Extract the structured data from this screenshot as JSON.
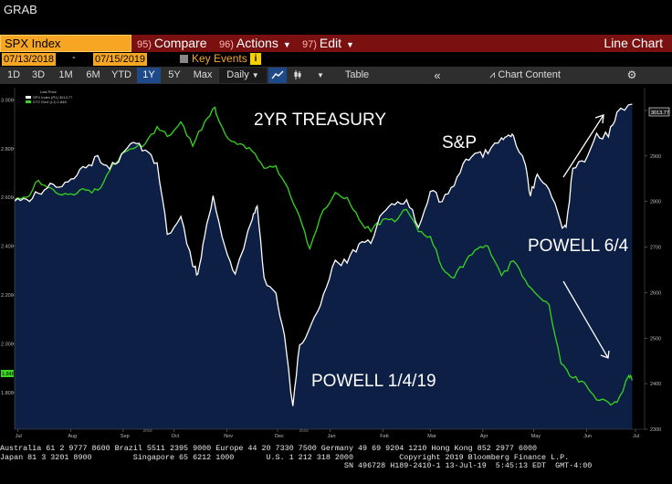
{
  "header": {
    "grab_label": "GRAB"
  },
  "menubar": {
    "security": "SPX Index",
    "compare": {
      "num": "95)",
      "label": "Compare"
    },
    "actions": {
      "num": "96)",
      "label": "Actions"
    },
    "edit": {
      "num": "97)",
      "label": "Edit"
    },
    "view_title": "Line Chart"
  },
  "dates": {
    "start": "07/13/2018",
    "separator": "-",
    "end": "07/15/2019",
    "key_events_label": "Key Events",
    "info_glyph": "i"
  },
  "toolbar": {
    "ranges": [
      "1D",
      "3D",
      "1M",
      "6M",
      "YTD",
      "1Y",
      "5Y",
      "Max"
    ],
    "active_range": "1Y",
    "frequency": "Daily",
    "table_label": "Table",
    "collapse_glyph": "«",
    "chart_content_label": "Chart Content",
    "gear_glyph": "⚙"
  },
  "legend": {
    "title": "Last Price",
    "spx": {
      "label": "SPX Index  (R1) 3013.77",
      "color": "#ffffff"
    },
    "gt2": {
      "label": "GT2 Govt  (L1)    1.848",
      "color": "#35d61e"
    }
  },
  "last_values": {
    "spx": "3013.77",
    "gt2": "1.848"
  },
  "annotations": {
    "treasury": "2YR TREASURY",
    "sp": "S&P",
    "powell_jun": "POWELL 6/4",
    "powell_jan": "POWELL 1/4/19"
  },
  "chart_data": {
    "type": "line",
    "x_range": [
      "2018-07-13",
      "2019-07-15"
    ],
    "x_ticks": [
      "Jul",
      "Aug",
      "Sep",
      "Oct",
      "Nov",
      "Dec",
      "Jan",
      "Feb",
      "Mar",
      "Apr",
      "May",
      "Jun",
      "Jul"
    ],
    "year_labels": [
      "2018",
      "2019"
    ],
    "series": [
      {
        "name": "SPX Index",
        "axis": "right",
        "color": "#ffffff",
        "fill": "#0d1f45",
        "ylim": [
          2300,
          3050
        ],
        "y_ticks": [
          2300,
          2400,
          2500,
          2600,
          2700,
          2800,
          2900,
          3000
        ],
        "points": [
          [
            "2018-07-13",
            2801
          ],
          [
            "2018-07-20",
            2805
          ],
          [
            "2018-07-27",
            2818
          ],
          [
            "2018-08-03",
            2840
          ],
          [
            "2018-08-10",
            2833
          ],
          [
            "2018-08-17",
            2850
          ],
          [
            "2018-08-24",
            2874
          ],
          [
            "2018-08-31",
            2901
          ],
          [
            "2018-09-07",
            2871
          ],
          [
            "2018-09-14",
            2904
          ],
          [
            "2018-09-21",
            2930
          ],
          [
            "2018-09-28",
            2913
          ],
          [
            "2018-10-05",
            2885
          ],
          [
            "2018-10-11",
            2728
          ],
          [
            "2018-10-19",
            2767
          ],
          [
            "2018-10-26",
            2658
          ],
          [
            "2018-10-29",
            2641
          ],
          [
            "2018-11-02",
            2723
          ],
          [
            "2018-11-07",
            2813
          ],
          [
            "2018-11-14",
            2701
          ],
          [
            "2018-11-20",
            2641
          ],
          [
            "2018-11-30",
            2760
          ],
          [
            "2018-12-03",
            2790
          ],
          [
            "2018-12-07",
            2633
          ],
          [
            "2018-12-14",
            2599
          ],
          [
            "2018-12-19",
            2507
          ],
          [
            "2018-12-24",
            2351
          ],
          [
            "2018-12-28",
            2485
          ],
          [
            "2019-01-04",
            2532
          ],
          [
            "2019-01-11",
            2596
          ],
          [
            "2019-01-18",
            2671
          ],
          [
            "2019-01-25",
            2665
          ],
          [
            "2019-02-01",
            2707
          ],
          [
            "2019-02-08",
            2708
          ],
          [
            "2019-02-15",
            2775
          ],
          [
            "2019-02-22",
            2793
          ],
          [
            "2019-03-01",
            2804
          ],
          [
            "2019-03-08",
            2743
          ],
          [
            "2019-03-15",
            2822
          ],
          [
            "2019-03-22",
            2800
          ],
          [
            "2019-03-29",
            2834
          ],
          [
            "2019-04-05",
            2893
          ],
          [
            "2019-04-12",
            2907
          ],
          [
            "2019-04-18",
            2905
          ],
          [
            "2019-04-26",
            2940
          ],
          [
            "2019-04-30",
            2946
          ],
          [
            "2019-05-03",
            2945
          ],
          [
            "2019-05-10",
            2881
          ],
          [
            "2019-05-13",
            2812
          ],
          [
            "2019-05-17",
            2860
          ],
          [
            "2019-05-24",
            2826
          ],
          [
            "2019-05-31",
            2752
          ],
          [
            "2019-06-03",
            2744
          ],
          [
            "2019-06-07",
            2873
          ],
          [
            "2019-06-14",
            2887
          ],
          [
            "2019-06-21",
            2950
          ],
          [
            "2019-06-28",
            2942
          ],
          [
            "2019-07-03",
            2996
          ],
          [
            "2019-07-12",
            3014
          ]
        ]
      },
      {
        "name": "GT2 Govt",
        "axis": "left",
        "color": "#35d61e",
        "ylim": [
          1.65,
          3.05
        ],
        "y_ticks": [
          1.8,
          2.0,
          2.2,
          2.4,
          2.6,
          2.8,
          3.0
        ],
        "points": [
          [
            "2018-07-13",
            2.59
          ],
          [
            "2018-07-20",
            2.6
          ],
          [
            "2018-07-27",
            2.67
          ],
          [
            "2018-08-03",
            2.64
          ],
          [
            "2018-08-10",
            2.61
          ],
          [
            "2018-08-17",
            2.61
          ],
          [
            "2018-08-24",
            2.63
          ],
          [
            "2018-08-31",
            2.63
          ],
          [
            "2018-09-07",
            2.71
          ],
          [
            "2018-09-14",
            2.78
          ],
          [
            "2018-09-21",
            2.8
          ],
          [
            "2018-09-28",
            2.82
          ],
          [
            "2018-10-05",
            2.89
          ],
          [
            "2018-10-11",
            2.85
          ],
          [
            "2018-10-19",
            2.91
          ],
          [
            "2018-10-26",
            2.81
          ],
          [
            "2018-11-02",
            2.91
          ],
          [
            "2018-11-08",
            2.97
          ],
          [
            "2018-11-09",
            2.94
          ],
          [
            "2018-11-16",
            2.84
          ],
          [
            "2018-11-23",
            2.82
          ],
          [
            "2018-11-30",
            2.79
          ],
          [
            "2018-12-07",
            2.72
          ],
          [
            "2018-12-14",
            2.73
          ],
          [
            "2018-12-21",
            2.64
          ],
          [
            "2018-12-28",
            2.52
          ],
          [
            "2019-01-03",
            2.39
          ],
          [
            "2019-01-11",
            2.55
          ],
          [
            "2019-01-18",
            2.62
          ],
          [
            "2019-01-25",
            2.6
          ],
          [
            "2019-02-01",
            2.51
          ],
          [
            "2019-02-08",
            2.46
          ],
          [
            "2019-02-15",
            2.51
          ],
          [
            "2019-02-22",
            2.5
          ],
          [
            "2019-03-01",
            2.55
          ],
          [
            "2019-03-08",
            2.46
          ],
          [
            "2019-03-15",
            2.44
          ],
          [
            "2019-03-22",
            2.31
          ],
          [
            "2019-03-29",
            2.27
          ],
          [
            "2019-04-05",
            2.34
          ],
          [
            "2019-04-12",
            2.39
          ],
          [
            "2019-04-18",
            2.4
          ],
          [
            "2019-04-26",
            2.28
          ],
          [
            "2019-05-03",
            2.34
          ],
          [
            "2019-05-10",
            2.26
          ],
          [
            "2019-05-17",
            2.2
          ],
          [
            "2019-05-24",
            2.16
          ],
          [
            "2019-05-31",
            1.92
          ],
          [
            "2019-06-07",
            1.86
          ],
          [
            "2019-06-14",
            1.84
          ],
          [
            "2019-06-21",
            1.77
          ],
          [
            "2019-06-28",
            1.76
          ],
          [
            "2019-07-03",
            1.76
          ],
          [
            "2019-07-10",
            1.87
          ],
          [
            "2019-07-12",
            1.85
          ]
        ]
      }
    ]
  },
  "footer": {
    "contacts_line1": "Australia 61 2 9777 8600 Brazil 5511 2395 9000 Europe 44 20 7330 7500 Germany 49 69 9204 1210 Hong Kong 852 2977 6000",
    "contacts_line2": "Japan 81 3 3201 8900         Singapore 65 6212 1000       U.S. 1 212 318 2000          Copyright 2019 Bloomberg Finance L.P.",
    "contacts_line3": "                                                                           SN 496728 H189-2410-1 13-Jul-19  5:45:13 EDT  GMT-4:00"
  }
}
